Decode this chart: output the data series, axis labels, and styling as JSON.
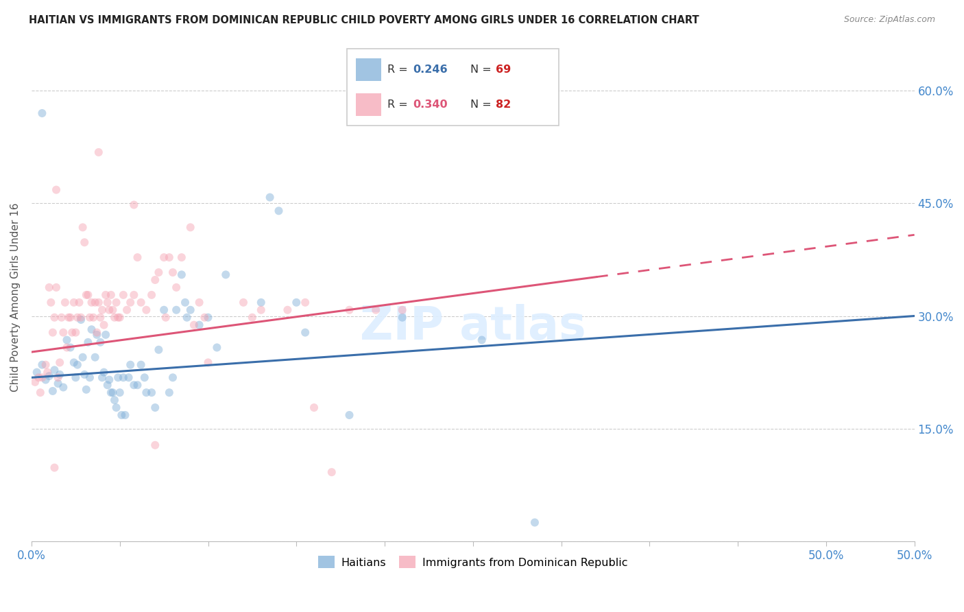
{
  "title": "HAITIAN VS IMMIGRANTS FROM DOMINICAN REPUBLIC CHILD POVERTY AMONG GIRLS UNDER 16 CORRELATION CHART",
  "source": "Source: ZipAtlas.com",
  "ylabel": "Child Poverty Among Girls Under 16",
  "xlim": [
    0.0,
    0.5
  ],
  "ylim": [
    0.0,
    0.65
  ],
  "xtick_positions": [
    0.0,
    0.05,
    0.1,
    0.15,
    0.2,
    0.25,
    0.3,
    0.35,
    0.4,
    0.45,
    0.5
  ],
  "xtick_labels_show": {
    "0.0": "0.0%",
    "0.5": "50.0%"
  },
  "ytick_positions": [
    0.0,
    0.15,
    0.3,
    0.45,
    0.6
  ],
  "ytick_labels": [
    "",
    "15.0%",
    "30.0%",
    "45.0%",
    "60.0%"
  ],
  "legend_bottom": [
    "Haitians",
    "Immigrants from Dominican Republic"
  ],
  "blue_color": "#7aacd6",
  "pink_color": "#f4a0b0",
  "blue_line_color": "#3a6eaa",
  "pink_line_color": "#dd5577",
  "background_color": "#ffffff",
  "grid_color": "#cccccc",
  "title_color": "#222222",
  "right_ytick_color": "#4488cc",
  "watermark_color": "#ddeeff",
  "blue_scatter": [
    [
      0.003,
      0.225
    ],
    [
      0.006,
      0.235
    ],
    [
      0.008,
      0.215
    ],
    [
      0.01,
      0.22
    ],
    [
      0.012,
      0.2
    ],
    [
      0.013,
      0.228
    ],
    [
      0.015,
      0.21
    ],
    [
      0.016,
      0.222
    ],
    [
      0.018,
      0.205
    ],
    [
      0.02,
      0.268
    ],
    [
      0.022,
      0.258
    ],
    [
      0.024,
      0.238
    ],
    [
      0.025,
      0.218
    ],
    [
      0.026,
      0.235
    ],
    [
      0.028,
      0.295
    ],
    [
      0.029,
      0.245
    ],
    [
      0.03,
      0.222
    ],
    [
      0.031,
      0.202
    ],
    [
      0.032,
      0.265
    ],
    [
      0.033,
      0.218
    ],
    [
      0.034,
      0.282
    ],
    [
      0.036,
      0.245
    ],
    [
      0.037,
      0.275
    ],
    [
      0.039,
      0.265
    ],
    [
      0.04,
      0.218
    ],
    [
      0.041,
      0.225
    ],
    [
      0.042,
      0.275
    ],
    [
      0.043,
      0.208
    ],
    [
      0.044,
      0.215
    ],
    [
      0.045,
      0.198
    ],
    [
      0.046,
      0.198
    ],
    [
      0.047,
      0.188
    ],
    [
      0.048,
      0.178
    ],
    [
      0.049,
      0.218
    ],
    [
      0.05,
      0.198
    ],
    [
      0.051,
      0.168
    ],
    [
      0.052,
      0.218
    ],
    [
      0.053,
      0.168
    ],
    [
      0.055,
      0.218
    ],
    [
      0.056,
      0.235
    ],
    [
      0.058,
      0.208
    ],
    [
      0.06,
      0.208
    ],
    [
      0.062,
      0.235
    ],
    [
      0.064,
      0.218
    ],
    [
      0.065,
      0.198
    ],
    [
      0.068,
      0.198
    ],
    [
      0.07,
      0.178
    ],
    [
      0.072,
      0.255
    ],
    [
      0.075,
      0.308
    ],
    [
      0.078,
      0.198
    ],
    [
      0.08,
      0.218
    ],
    [
      0.082,
      0.308
    ],
    [
      0.085,
      0.355
    ],
    [
      0.087,
      0.318
    ],
    [
      0.088,
      0.298
    ],
    [
      0.09,
      0.308
    ],
    [
      0.095,
      0.288
    ],
    [
      0.1,
      0.298
    ],
    [
      0.105,
      0.258
    ],
    [
      0.11,
      0.355
    ],
    [
      0.13,
      0.318
    ],
    [
      0.135,
      0.458
    ],
    [
      0.14,
      0.44
    ],
    [
      0.15,
      0.318
    ],
    [
      0.155,
      0.278
    ],
    [
      0.18,
      0.168
    ],
    [
      0.21,
      0.298
    ],
    [
      0.255,
      0.268
    ],
    [
      0.285,
      0.025
    ],
    [
      0.006,
      0.57
    ]
  ],
  "pink_scatter": [
    [
      0.002,
      0.212
    ],
    [
      0.004,
      0.218
    ],
    [
      0.005,
      0.198
    ],
    [
      0.006,
      0.218
    ],
    [
      0.008,
      0.235
    ],
    [
      0.009,
      0.225
    ],
    [
      0.01,
      0.338
    ],
    [
      0.011,
      0.318
    ],
    [
      0.012,
      0.278
    ],
    [
      0.013,
      0.298
    ],
    [
      0.014,
      0.338
    ],
    [
      0.015,
      0.218
    ],
    [
      0.016,
      0.238
    ],
    [
      0.017,
      0.298
    ],
    [
      0.018,
      0.278
    ],
    [
      0.019,
      0.318
    ],
    [
      0.02,
      0.258
    ],
    [
      0.021,
      0.298
    ],
    [
      0.022,
      0.298
    ],
    [
      0.023,
      0.278
    ],
    [
      0.024,
      0.318
    ],
    [
      0.025,
      0.278
    ],
    [
      0.026,
      0.298
    ],
    [
      0.027,
      0.318
    ],
    [
      0.028,
      0.298
    ],
    [
      0.029,
      0.418
    ],
    [
      0.03,
      0.398
    ],
    [
      0.031,
      0.328
    ],
    [
      0.032,
      0.328
    ],
    [
      0.033,
      0.298
    ],
    [
      0.034,
      0.318
    ],
    [
      0.035,
      0.298
    ],
    [
      0.036,
      0.318
    ],
    [
      0.037,
      0.278
    ],
    [
      0.038,
      0.318
    ],
    [
      0.039,
      0.298
    ],
    [
      0.04,
      0.308
    ],
    [
      0.041,
      0.288
    ],
    [
      0.042,
      0.328
    ],
    [
      0.043,
      0.318
    ],
    [
      0.044,
      0.308
    ],
    [
      0.045,
      0.328
    ],
    [
      0.046,
      0.308
    ],
    [
      0.047,
      0.298
    ],
    [
      0.048,
      0.318
    ],
    [
      0.049,
      0.298
    ],
    [
      0.05,
      0.298
    ],
    [
      0.052,
      0.328
    ],
    [
      0.054,
      0.308
    ],
    [
      0.056,
      0.318
    ],
    [
      0.058,
      0.328
    ],
    [
      0.06,
      0.378
    ],
    [
      0.062,
      0.318
    ],
    [
      0.065,
      0.308
    ],
    [
      0.068,
      0.328
    ],
    [
      0.07,
      0.348
    ],
    [
      0.072,
      0.358
    ],
    [
      0.075,
      0.378
    ],
    [
      0.076,
      0.298
    ],
    [
      0.078,
      0.378
    ],
    [
      0.08,
      0.358
    ],
    [
      0.082,
      0.338
    ],
    [
      0.085,
      0.378
    ],
    [
      0.09,
      0.418
    ],
    [
      0.092,
      0.288
    ],
    [
      0.095,
      0.318
    ],
    [
      0.098,
      0.298
    ],
    [
      0.1,
      0.238
    ],
    [
      0.12,
      0.318
    ],
    [
      0.125,
      0.298
    ],
    [
      0.13,
      0.308
    ],
    [
      0.145,
      0.308
    ],
    [
      0.155,
      0.318
    ],
    [
      0.16,
      0.178
    ],
    [
      0.17,
      0.092
    ],
    [
      0.18,
      0.308
    ],
    [
      0.195,
      0.308
    ],
    [
      0.21,
      0.308
    ],
    [
      0.014,
      0.468
    ],
    [
      0.038,
      0.518
    ],
    [
      0.058,
      0.448
    ],
    [
      0.07,
      0.128
    ],
    [
      0.013,
      0.098
    ]
  ],
  "blue_trendline": {
    "x_start": 0.0,
    "y_start": 0.218,
    "x_end": 0.5,
    "y_end": 0.3
  },
  "pink_trendline_solid": {
    "x_start": 0.0,
    "y_start": 0.252,
    "x_end": 0.32,
    "y_end": 0.352
  },
  "pink_trendline_dashed": {
    "x_start": 0.32,
    "y_start": 0.352,
    "x_end": 0.5,
    "y_end": 0.408
  },
  "marker_size": 75,
  "marker_alpha": 0.45
}
